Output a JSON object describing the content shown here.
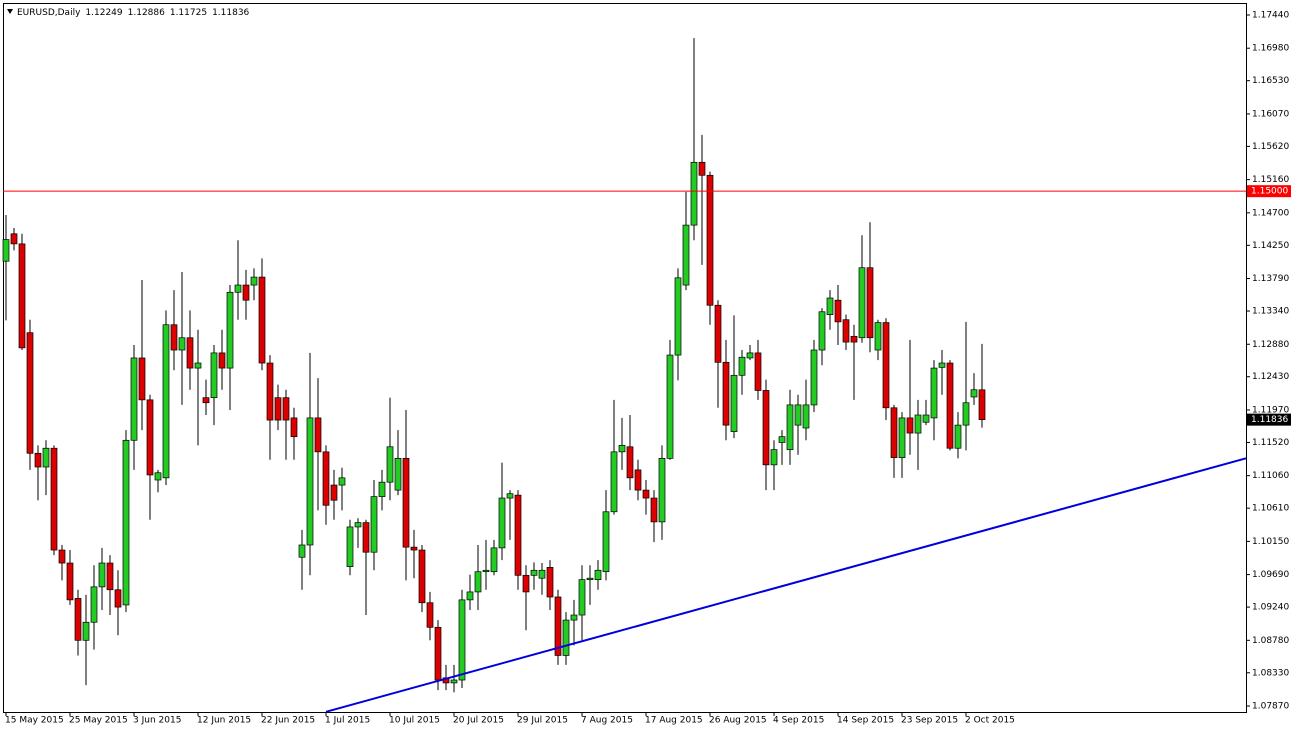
{
  "chart_data": {
    "type": "candlestick",
    "title": "EURUSD,Daily",
    "categories": [
      "15 May 2015",
      null,
      null,
      null,
      null,
      null,
      null,
      null,
      "25 May 2015",
      null,
      null,
      null,
      null,
      null,
      null,
      null,
      "3 Jun 2015",
      null,
      null,
      null,
      null,
      null,
      null,
      null,
      "12 Jun 2015",
      null,
      null,
      null,
      null,
      null,
      null,
      null,
      "22 Jun 2015",
      null,
      null,
      null,
      null,
      null,
      null,
      null,
      "1 Jul 2015",
      null,
      null,
      null,
      null,
      null,
      null,
      null,
      "10 Jul 2015",
      null,
      null,
      null,
      null,
      null,
      null,
      null,
      "20 Jul 2015",
      null,
      null,
      null,
      null,
      null,
      null,
      null,
      "29 Jul 2015",
      null,
      null,
      null,
      null,
      null,
      null,
      null,
      "7 Aug 2015",
      null,
      null,
      null,
      null,
      null,
      null,
      null,
      "17 Aug 2015",
      null,
      null,
      null,
      null,
      null,
      null,
      null,
      "26 Aug 2015",
      null,
      null,
      null,
      null,
      null,
      null,
      null,
      "4 Sep 2015",
      null,
      null,
      null,
      null,
      null,
      null,
      null,
      "14 Sep 2015",
      null,
      null,
      null,
      null,
      null,
      null,
      null,
      "23 Sep 2015",
      null,
      null,
      null,
      null,
      null,
      null,
      null,
      "2 Oct 2015",
      null,
      null
    ],
    "open": [
      1.1403,
      1.1441,
      1.1427,
      1.1304,
      1.1137,
      1.1118,
      1.1144,
      1.1003,
      1.0985,
      1.0936,
      1.0878,
      1.0903,
      1.0952,
      1.0985,
      1.0948,
      1.0927,
      1.1155,
      1.1269,
      1.1211,
      1.11,
      1.1103,
      1.1315,
      1.128,
      1.1297,
      1.1255,
      1.1214,
      1.1214,
      1.1276,
      1.1255,
      1.136,
      1.137,
      1.137,
      1.1381,
      1.1262,
      1.1214,
      1.1214,
      1.1186,
      1.0993,
      1.101,
      1.1186,
      1.1139,
      1.1093,
      1.1093,
      1.098,
      1.1035,
      1.1041,
      1.1,
      1.1077,
      1.1097,
      1.1086,
      1.113,
      1.1007,
      1.1003,
      1.093,
      1.0896,
      1.0826,
      1.0819,
      1.0823,
      1.0934,
      1.0945,
      1.0973,
      1.0973,
      1.1006,
      1.1075,
      1.1079,
      1.0968,
      1.0968,
      1.0964,
      1.0979,
      1.0938,
      1.0857,
      1.0906,
      1.0913,
      1.0962,
      1.0962,
      1.0973,
      1.1056,
      1.1139,
      1.1146,
      1.1114,
      1.1086,
      1.1075,
      1.1042,
      1.113,
      1.1273,
      1.137,
      1.1453,
      1.154,
      1.1522,
      1.1342,
      1.1263,
      1.1167,
      1.1245,
      1.1269,
      1.1276,
      1.1224,
      1.1121,
      1.1152,
      1.1142,
      1.1176,
      1.1172,
      1.1204,
      1.128,
      1.1329,
      1.1349,
      1.1322,
      1.1299,
      1.1297,
      1.1394,
      1.128,
      1.1318,
      1.12,
      1.1131,
      1.1186,
      1.1165,
      1.118,
      1.1186,
      1.1256,
      1.1262,
      1.1144,
      1.1176,
      1.1215,
      1.12249
    ],
    "high": [
      1.1467,
      1.1449,
      1.1441,
      1.1322,
      1.1148,
      1.1155,
      1.1148,
      1.101,
      1.1003,
      1.0948,
      1.0941,
      1.0982,
      1.1006,
      1.0996,
      1.0975,
      1.1169,
      1.1287,
      1.1377,
      1.1218,
      1.1114,
      1.1335,
      1.1363,
      1.1388,
      1.1335,
      1.1308,
      1.1239,
      1.1287,
      1.1308,
      1.137,
      1.1432,
      1.1391,
      1.1393,
      1.1407,
      1.1273,
      1.1232,
      1.1225,
      1.12,
      1.1031,
      1.1276,
      1.1241,
      1.1148,
      1.1114,
      1.1117,
      1.1045,
      1.1047,
      1.1045,
      1.11,
      1.1114,
      1.1214,
      1.1169,
      1.1197,
      1.1031,
      1.101,
      1.0945,
      1.0906,
      1.0844,
      1.0844,
      1.0948,
      1.0969,
      1.101,
      1.1017,
      1.1017,
      1.1124,
      1.1086,
      1.1086,
      1.0982,
      1.0986,
      1.0985,
      1.0989,
      1.0948,
      1.0917,
      1.0934,
      1.0982,
      1.0982,
      1.0989,
      1.1086,
      1.1211,
      1.1186,
      1.119,
      1.1128,
      1.11,
      1.1086,
      1.1148,
      1.1294,
      1.1393,
      1.1499,
      1.1712,
      1.1578,
      1.1527,
      1.1349,
      1.1294,
      1.1328,
      1.128,
      1.1287,
      1.1294,
      1.1239,
      1.1155,
      1.1169,
      1.1225,
      1.1218,
      1.1239,
      1.1294,
      1.1338,
      1.1363,
      1.137,
      1.1329,
      1.1315,
      1.1439,
      1.1457,
      1.1322,
      1.1324,
      1.1204,
      1.1194,
      1.1294,
      1.1211,
      1.1211,
      1.1266,
      1.128,
      1.1266,
      1.1194,
      1.1319,
      1.1248,
      1.12886
    ],
    "low": [
      1.1321,
      1.1418,
      1.128,
      1.1114,
      1.1072,
      1.1079,
      1.0996,
      1.0961,
      1.0927,
      1.0857,
      1.0816,
      1.0865,
      1.092,
      1.0913,
      1.0885,
      1.0917,
      1.1114,
      1.1169,
      1.1045,
      1.1083,
      1.1093,
      1.1252,
      1.1204,
      1.1225,
      1.1148,
      1.119,
      1.1176,
      1.1225,
      1.1197,
      1.1322,
      1.1322,
      1.1349,
      1.1252,
      1.1128,
      1.1169,
      1.1128,
      1.1128,
      1.0948,
      1.0968,
      1.1058,
      1.1038,
      1.1045,
      1.1058,
      1.0968,
      1.1006,
      1.0913,
      1.0975,
      1.1058,
      1.1072,
      1.1079,
      1.0961,
      1.0964,
      1.0917,
      1.0878,
      1.0809,
      1.0809,
      1.0806,
      1.0812,
      1.092,
      1.092,
      1.0948,
      1.0968,
      1.0989,
      1.1017,
      1.0948,
      1.0892,
      1.0948,
      1.0941,
      1.092,
      1.0844,
      1.0844,
      1.0871,
      1.0878,
      1.0927,
      1.0948,
      1.0961,
      1.1052,
      1.1114,
      1.1086,
      1.1072,
      1.1052,
      1.1014,
      1.1017,
      1.1128,
      1.1238,
      1.1363,
      1.1432,
      1.1398,
      1.1315,
      1.12,
      1.1155,
      1.1158,
      1.1218,
      1.1266,
      1.1211,
      1.1086,
      1.1086,
      1.1121,
      1.1121,
      1.1135,
      1.1155,
      1.1194,
      1.1259,
      1.1308,
      1.1287,
      1.128,
      1.1211,
      1.129,
      1.1277,
      1.1266,
      1.1183,
      1.1103,
      1.1103,
      1.1135,
      1.1114,
      1.1176,
      1.1155,
      1.1218,
      1.1141,
      1.113,
      1.1141,
      1.1204,
      1.11725
    ],
    "close": [
      1.1433,
      1.1427,
      1.1283,
      1.1137,
      1.1118,
      1.1144,
      1.1003,
      1.0985,
      1.0934,
      1.0878,
      1.0903,
      1.0952,
      1.0985,
      1.0948,
      1.0924,
      1.1155,
      1.1269,
      1.1211,
      1.1107,
      1.111,
      1.1315,
      1.128,
      1.1297,
      1.1255,
      1.1262,
      1.1207,
      1.1276,
      1.1255,
      1.136,
      1.137,
      1.1349,
      1.1381,
      1.1262,
      1.1183,
      1.1183,
      1.1183,
      1.116,
      1.101,
      1.1186,
      1.1139,
      1.1065,
      1.1072,
      1.1103,
      1.1035,
      1.1041,
      1.1,
      1.1077,
      1.1097,
      1.1146,
      1.113,
      1.1007,
      1.1003,
      1.093,
      1.0896,
      1.0823,
      1.0819,
      1.0823,
      1.0934,
      1.0945,
      1.0973,
      1.0975,
      1.1006,
      1.1075,
      1.1081,
      1.0968,
      1.0945,
      1.0975,
      1.0975,
      1.0938,
      1.0857,
      1.0906,
      1.0913,
      1.0962,
      1.0964,
      1.0975,
      1.1056,
      1.1139,
      1.1148,
      1.1103,
      1.1086,
      1.1075,
      1.1042,
      1.113,
      1.1273,
      1.138,
      1.1453,
      1.154,
      1.1522,
      1.1342,
      1.1263,
      1.1176,
      1.1245,
      1.127,
      1.1276,
      1.1224,
      1.1121,
      1.1142,
      1.116,
      1.1204,
      1.1204,
      1.1204,
      1.128,
      1.1333,
      1.1352,
      1.1319,
      1.1291,
      1.1291,
      1.1394,
      1.1297,
      1.1318,
      1.12,
      1.1131,
      1.1186,
      1.1165,
      1.119,
      1.119,
      1.1255,
      1.1262,
      1.1144,
      1.1176,
      1.1207,
      1.1225,
      1.11836
    ],
    "up_color": "#22cc22",
    "down_color": "#dd0000",
    "ylim": [
      1.07787,
      1.17606
    ],
    "yticks": [
      {
        "value": 1.1744,
        "label": "1.17440"
      },
      {
        "value": 1.1698,
        "label": "1.16980"
      },
      {
        "value": 1.1653,
        "label": "1.16530"
      },
      {
        "value": 1.1607,
        "label": "1.16070"
      },
      {
        "value": 1.1562,
        "label": "1.15620"
      },
      {
        "value": 1.1516,
        "label": "1.15160"
      },
      {
        "value": 1.147,
        "label": "1.14700"
      },
      {
        "value": 1.1425,
        "label": "1.14250"
      },
      {
        "value": 1.1379,
        "label": "1.13790"
      },
      {
        "value": 1.1334,
        "label": "1.13340"
      },
      {
        "value": 1.1288,
        "label": "1.12880"
      },
      {
        "value": 1.1243,
        "label": "1.12430"
      },
      {
        "value": 1.1197,
        "label": "1.11970"
      },
      {
        "value": 1.1152,
        "label": "1.11520"
      },
      {
        "value": 1.1106,
        "label": "1.11060"
      },
      {
        "value": 1.1061,
        "label": "1.10610"
      },
      {
        "value": 1.1015,
        "label": "1.10150"
      },
      {
        "value": 1.0969,
        "label": "1.09690"
      },
      {
        "value": 1.0924,
        "label": "1.09240"
      },
      {
        "value": 1.0878,
        "label": "1.08780"
      },
      {
        "value": 1.0833,
        "label": "1.08330"
      },
      {
        "value": 1.0787,
        "label": "1.07870"
      }
    ],
    "hline": {
      "value": 1.15,
      "label": "1.15000",
      "color": "#ff0000"
    },
    "trendline": {
      "x": [
        40,
        155
      ],
      "y": [
        1.0779,
        1.113
      ],
      "color": "#0000dd"
    },
    "grid": false
  }
}
